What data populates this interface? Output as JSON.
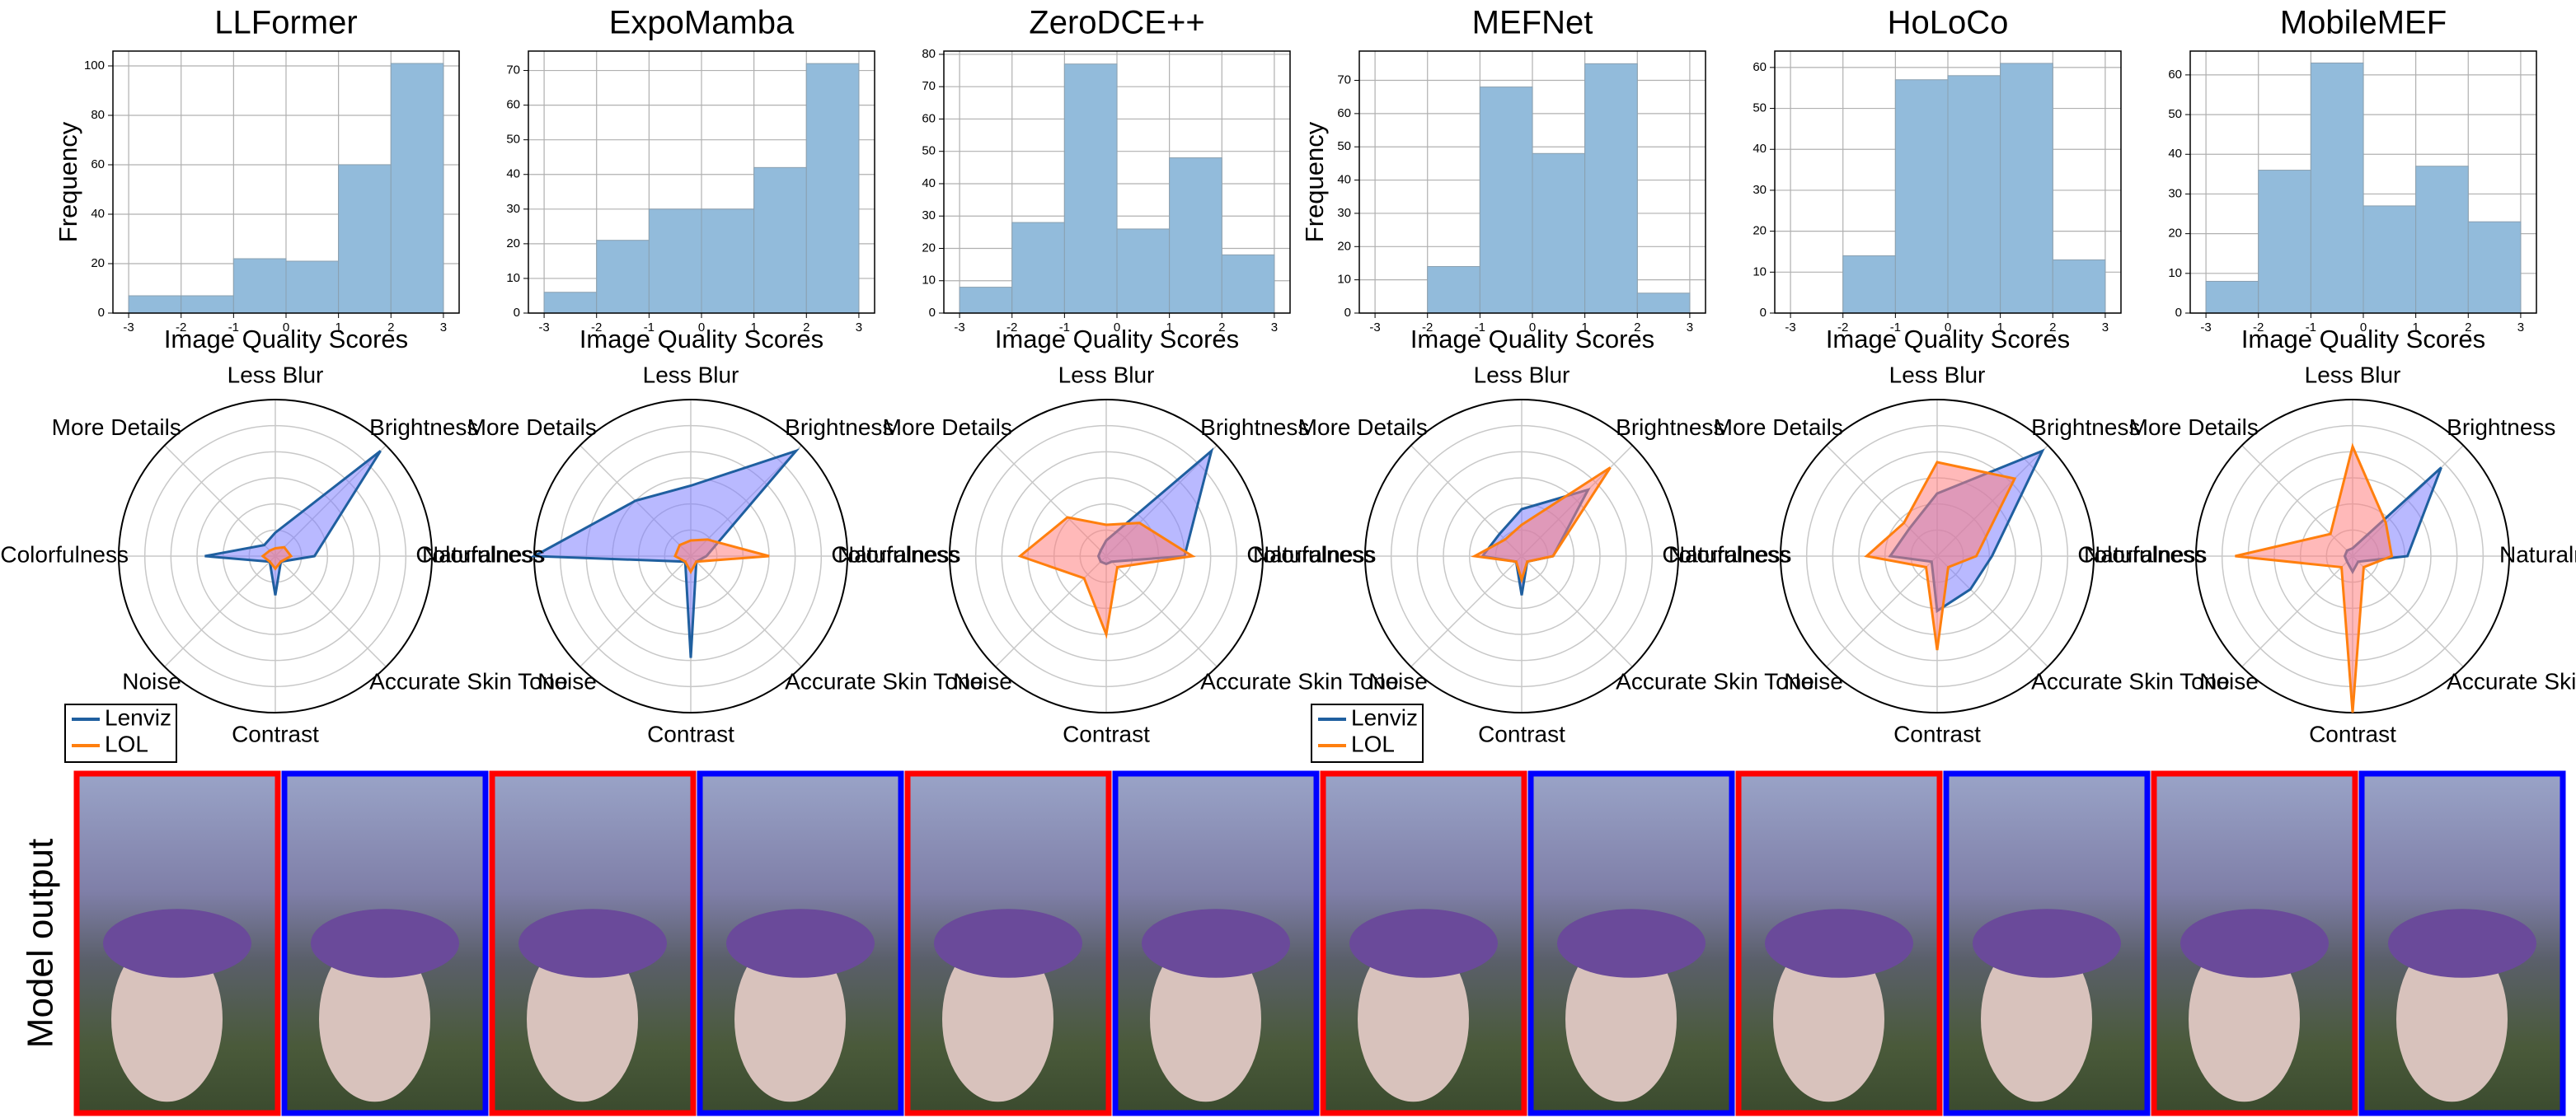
{
  "chart_data": [
    {
      "type": "histogram",
      "title": "LLFormer",
      "bins": [
        -3,
        -2,
        -1,
        0,
        1,
        2,
        3
      ],
      "values": [
        7,
        7,
        22,
        21,
        60,
        101
      ],
      "color": "#92bbdb",
      "xlim": [
        -3.3,
        3.3
      ],
      "ylim": [
        0,
        106
      ],
      "xticks": [
        -3,
        -2,
        -1,
        0,
        1,
        2,
        3
      ],
      "yticks": [
        0,
        20,
        40,
        60,
        80,
        100
      ],
      "xlabel": "Image Quality Scores",
      "ylabel": "Frequency",
      "grid": true
    },
    {
      "type": "histogram",
      "title": "ExpoMamba",
      "bins": [
        -3,
        -2,
        -1,
        0,
        1,
        2,
        3
      ],
      "values": [
        6,
        21,
        30,
        30,
        42,
        72
      ],
      "color": "#92bbdb",
      "xlim": [
        -3.3,
        3.3
      ],
      "ylim": [
        0,
        75.6
      ],
      "xticks": [
        -3,
        -2,
        -1,
        0,
        1,
        2,
        3
      ],
      "yticks": [
        0,
        10,
        20,
        30,
        40,
        50,
        60,
        70
      ],
      "xlabel": "Image Quality Scores",
      "grid": true
    },
    {
      "type": "histogram",
      "title": "ZeroDCE++",
      "bins": [
        -3,
        -2,
        -1,
        0,
        1,
        2,
        3
      ],
      "values": [
        8,
        28,
        77,
        26,
        48,
        18
      ],
      "color": "#92bbdb",
      "xlim": [
        -3.3,
        3.3
      ],
      "ylim": [
        0,
        81
      ],
      "xticks": [
        -3,
        -2,
        -1,
        0,
        1,
        2,
        3
      ],
      "yticks": [
        0,
        10,
        20,
        30,
        40,
        50,
        60,
        70,
        80
      ],
      "xlabel": "Image Quality Scores",
      "grid": true
    },
    {
      "type": "histogram",
      "title": "MEFNet",
      "bins": [
        -3,
        -2,
        -1,
        0,
        1,
        2,
        3
      ],
      "values": [
        0,
        14,
        68,
        48,
        75,
        6
      ],
      "color": "#92bbdb",
      "xlim": [
        -3.3,
        3.3
      ],
      "ylim": [
        0,
        78.8
      ],
      "xticks": [
        -3,
        -2,
        -1,
        0,
        1,
        2,
        3
      ],
      "yticks": [
        0,
        10,
        20,
        30,
        40,
        50,
        60,
        70
      ],
      "xlabel": "Image Quality Scores",
      "ylabel": "Frequency",
      "grid": true
    },
    {
      "type": "histogram",
      "title": "HoLoCo",
      "bins": [
        -3,
        -2,
        -1,
        0,
        1,
        2,
        3
      ],
      "values": [
        0,
        14,
        57,
        58,
        61,
        13
      ],
      "color": "#92bbdb",
      "xlim": [
        -3.3,
        3.3
      ],
      "ylim": [
        0,
        64
      ],
      "xticks": [
        -3,
        -2,
        -1,
        0,
        1,
        2,
        3
      ],
      "yticks": [
        0,
        10,
        20,
        30,
        40,
        50,
        60
      ],
      "xlabel": "Image Quality Scores",
      "grid": true
    },
    {
      "type": "histogram",
      "title": "MobileMEF",
      "bins": [
        -3,
        -2,
        -1,
        0,
        1,
        2,
        3
      ],
      "values": [
        8,
        36,
        63,
        27,
        37,
        23
      ],
      "color": "#92bbdb",
      "xlim": [
        -3.3,
        3.3
      ],
      "ylim": [
        0,
        66
      ],
      "xticks": [
        -3,
        -2,
        -1,
        0,
        1,
        2,
        3
      ],
      "yticks": [
        0,
        10,
        20,
        30,
        40,
        50,
        60
      ],
      "xlabel": "Image Quality Scores",
      "grid": true
    },
    {
      "type": "radar",
      "categories": [
        "Less Blur",
        "Brightness",
        "Naturalness",
        "Accurate Skin Tone",
        "Contrast",
        "Noise",
        "Colorfulness",
        "More Details"
      ],
      "rlim": [
        0,
        1
      ],
      "grid": true,
      "legend": "lower left",
      "series": [
        {
          "name": "Lenviz",
          "color": "#1f5f9f",
          "fill": "#8080ff",
          "values": [
            0.15,
            0.95,
            0.25,
            0.05,
            0.25,
            0.05,
            0.45,
            0.1
          ]
        },
        {
          "name": "LOL",
          "color": "#ff7f0e",
          "fill": "#ff8080",
          "values": [
            0.05,
            0.08,
            0.1,
            0.05,
            0.08,
            0.05,
            0.08,
            0.05
          ]
        }
      ]
    },
    {
      "type": "radar",
      "categories": [
        "Less Blur",
        "Brightness",
        "Naturalness",
        "Accurate Skin Tone",
        "Contrast",
        "Noise",
        "Colorfulness",
        "More Details"
      ],
      "rlim": [
        0,
        1
      ],
      "grid": true,
      "series": [
        {
          "name": "Lenviz",
          "color": "#1f5f9f",
          "fill": "#8080ff",
          "values": [
            0.45,
            0.95,
            0.1,
            0.05,
            0.65,
            0.05,
            1.0,
            0.5
          ]
        },
        {
          "name": "LOL",
          "color": "#ff7f0e",
          "fill": "#ff8080",
          "values": [
            0.1,
            0.15,
            0.5,
            0.05,
            0.1,
            0.05,
            0.1,
            0.1
          ]
        }
      ]
    },
    {
      "type": "radar",
      "categories": [
        "Less Blur",
        "Brightness",
        "Naturalness",
        "Accurate Skin Tone",
        "Contrast",
        "Noise",
        "Colorfulness",
        "More Details"
      ],
      "rlim": [
        0,
        1
      ],
      "grid": true,
      "series": [
        {
          "name": "Lenviz",
          "color": "#1f5f9f",
          "fill": "#8080ff",
          "values": [
            0.1,
            0.95,
            0.5,
            0.05,
            0.05,
            0.05,
            0.05,
            0.05
          ]
        },
        {
          "name": "LOL",
          "color": "#ff7f0e",
          "fill": "#ff8080",
          "values": [
            0.2,
            0.3,
            0.55,
            0.1,
            0.5,
            0.2,
            0.55,
            0.35
          ]
        }
      ]
    },
    {
      "type": "radar",
      "categories": [
        "Less Blur",
        "Brightness",
        "Naturalness",
        "Accurate Skin Tone",
        "Contrast",
        "Noise",
        "Colorfulness",
        "More Details"
      ],
      "rlim": [
        0,
        1
      ],
      "grid": true,
      "legend": "lower left",
      "series": [
        {
          "name": "Lenviz",
          "color": "#1f5f9f",
          "fill": "#8080ff",
          "values": [
            0.3,
            0.6,
            0.2,
            0.05,
            0.25,
            0.05,
            0.25,
            0.2
          ]
        },
        {
          "name": "LOL",
          "color": "#ff7f0e",
          "fill": "#ff8080",
          "values": [
            0.2,
            0.8,
            0.2,
            0.05,
            0.15,
            0.05,
            0.3,
            0.15
          ]
        }
      ]
    },
    {
      "type": "radar",
      "categories": [
        "Less Blur",
        "Brightness",
        "Naturalness",
        "Accurate Skin Tone",
        "Contrast",
        "Noise",
        "Colorfulness",
        "More Details"
      ],
      "rlim": [
        0,
        1
      ],
      "grid": true,
      "series": [
        {
          "name": "Lenviz",
          "color": "#1f5f9f",
          "fill": "#8080ff",
          "values": [
            0.4,
            0.95,
            0.35,
            0.3,
            0.35,
            0.05,
            0.3,
            0.25
          ]
        },
        {
          "name": "LOL",
          "color": "#ff7f0e",
          "fill": "#ff8080",
          "values": [
            0.6,
            0.7,
            0.25,
            0.1,
            0.6,
            0.1,
            0.45,
            0.3
          ]
        }
      ]
    },
    {
      "type": "radar",
      "categories": [
        "Less Blur",
        "Brightness",
        "Naturalness",
        "Accurate Skin Tone",
        "Contrast",
        "Noise",
        "Colorfulness",
        "More Details"
      ],
      "rlim": [
        0,
        1
      ],
      "grid": true,
      "series": [
        {
          "name": "Lenviz",
          "color": "#1f5f9f",
          "fill": "#8080ff",
          "values": [
            0.05,
            0.8,
            0.35,
            0.05,
            0.1,
            0.05,
            0.05,
            0.05
          ]
        },
        {
          "name": "LOL",
          "color": "#ff7f0e",
          "fill": "#ff8080",
          "values": [
            0.7,
            0.3,
            0.25,
            0.1,
            1.0,
            0.1,
            0.75,
            0.2
          ]
        }
      ]
    }
  ],
  "row_label": "Model output"
}
